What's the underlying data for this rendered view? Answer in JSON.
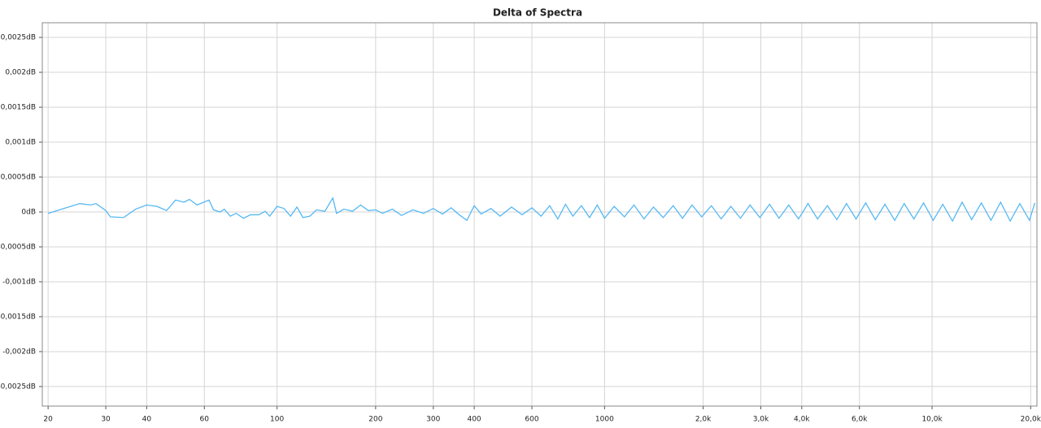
{
  "chart_data": {
    "type": "line",
    "title": "Delta of Spectra",
    "log_x": true,
    "grid": true,
    "color": "#55b9f3",
    "xlim": [
      19.2,
      20900
    ],
    "ylim": [
      -0.00278,
      0.00271
    ],
    "xticks": [
      20,
      30,
      40,
      60,
      100,
      200,
      300,
      400,
      600,
      1000,
      {
        "value": 2000,
        "label": "2,0k"
      },
      {
        "value": 3000,
        "label": "3,0k"
      },
      {
        "value": 4000,
        "label": "4,0k"
      },
      {
        "value": 6000,
        "label": "6,0k"
      },
      {
        "value": 10000,
        "label": "10,0k"
      },
      {
        "value": 20000,
        "label": "20,0k"
      }
    ],
    "yticks": [
      {
        "value": 0.0025,
        "label": "0,0025dB"
      },
      {
        "value": 0.002,
        "label": "0,002dB"
      },
      {
        "value": 0.0015,
        "label": "0,0015dB"
      },
      {
        "value": 0.001,
        "label": "0,001dB"
      },
      {
        "value": 0.0005,
        "label": "0,0005dB"
      },
      {
        "value": 0,
        "label": "0dB"
      },
      {
        "value": -0.0005,
        "label": "-0,0005dB"
      },
      {
        "value": -0.001,
        "label": "-0,001dB"
      },
      {
        "value": -0.0015,
        "label": "-0,0015dB"
      },
      {
        "value": -0.002,
        "label": "-0,002dB"
      },
      {
        "value": -0.0025,
        "label": "-0,0025dB"
      }
    ],
    "x": [
      20,
      22,
      25,
      27,
      28,
      30,
      31,
      34,
      37,
      40,
      43,
      46,
      49,
      52,
      54,
      57,
      62,
      64,
      67,
      69,
      72,
      75,
      79,
      83,
      88,
      92,
      95,
      100,
      105,
      110,
      115,
      120,
      126,
      132,
      140,
      148,
      152,
      160,
      170,
      180,
      190,
      200,
      210,
      225,
      240,
      260,
      280,
      300,
      320,
      340,
      360,
      380,
      400,
      420,
      450,
      480,
      520,
      560,
      600,
      640,
      680,
      720,
      760,
      800,
      850,
      900,
      950,
      1000,
      1070,
      1150,
      1230,
      1320,
      1410,
      1510,
      1620,
      1730,
      1850,
      1980,
      2120,
      2270,
      2430,
      2600,
      2780,
      2980,
      3190,
      3410,
      3650,
      3910,
      4180,
      4470,
      4790,
      5120,
      5480,
      5860,
      6270,
      6710,
      7180,
      7690,
      8220,
      8800,
      9420,
      10080,
      10780,
      11540,
      12350,
      13210,
      14140,
      15130,
      16190,
      17320,
      18530,
      19830,
      20600
    ],
    "values": [
      -2e-05,
      4e-05,
      0.00012,
      0.0001,
      0.00012,
      2e-05,
      -7e-05,
      -8e-05,
      4e-05,
      0.0001,
      8e-05,
      2e-05,
      0.00017,
      0.00014,
      0.00018,
      0.0001,
      0.00017,
      3e-05,
      0.0,
      4e-05,
      -6e-05,
      -2e-05,
      -9e-05,
      -4e-05,
      -4e-05,
      1e-05,
      -6e-05,
      8e-05,
      5e-05,
      -6e-05,
      7e-05,
      -8e-05,
      -6e-05,
      3e-05,
      1e-05,
      0.0002,
      -2e-05,
      4e-05,
      1e-05,
      0.0001,
      2e-05,
      3e-05,
      -2e-05,
      4e-05,
      -5e-05,
      3e-05,
      -2e-05,
      5e-05,
      -3e-05,
      6e-05,
      -4e-05,
      -0.00012,
      9e-05,
      -3e-05,
      5e-05,
      -6e-05,
      7e-05,
      -4e-05,
      6e-05,
      -6e-05,
      9e-05,
      -0.0001,
      0.00011,
      -6e-05,
      9e-05,
      -8e-05,
      0.0001,
      -9e-05,
      8e-05,
      -7e-05,
      0.0001,
      -0.0001,
      7e-05,
      -8e-05,
      9e-05,
      -9e-05,
      0.0001,
      -7e-05,
      9e-05,
      -0.0001,
      8e-05,
      -9e-05,
      0.0001,
      -8e-05,
      0.00011,
      -9e-05,
      0.0001,
      -0.0001,
      0.00012,
      -0.0001,
      9e-05,
      -0.00011,
      0.00012,
      -0.0001,
      0.00013,
      -0.00011,
      0.00011,
      -0.00012,
      0.00012,
      -0.0001,
      0.00013,
      -0.00012,
      0.00011,
      -0.00013,
      0.00014,
      -0.00011,
      0.00013,
      -0.00012,
      0.00014,
      -0.00013,
      0.00012,
      -0.00012,
      0.00013
    ]
  }
}
